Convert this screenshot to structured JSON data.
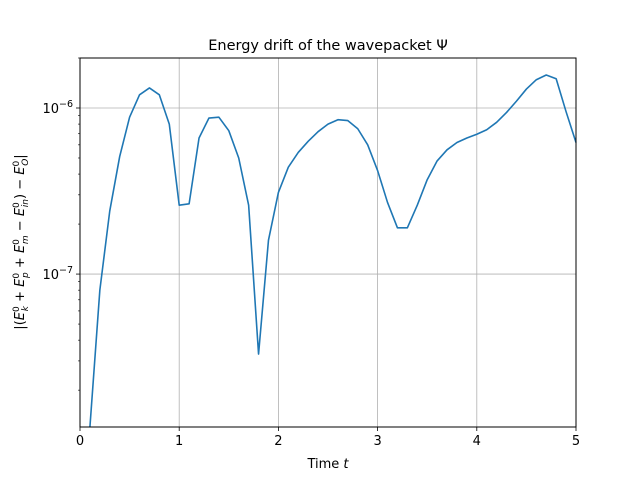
{
  "chart_data": {
    "type": "line",
    "title": "Energy drift of the wavepacket Ψ",
    "xlabel": "Time t",
    "ylabel": "|(E_k^0 + E_p^0 + E_m^0 − E_in^0) − E_O^0|",
    "xlim": [
      0,
      5
    ],
    "ylim": [
      1.2e-08,
      2e-06
    ],
    "yscale": "log",
    "grid": true,
    "x_ticks": [
      0,
      1,
      2,
      3,
      4,
      5
    ],
    "x_tick_labels": [
      "0",
      "1",
      "2",
      "3",
      "4",
      "5"
    ],
    "y_ticks": [
      1e-07,
      1e-06
    ],
    "y_tick_labels": [
      "10^-7",
      "10^-6"
    ],
    "series": [
      {
        "color": "#1f77b4",
        "x": [
          0.1,
          0.2,
          0.3,
          0.4,
          0.5,
          0.6,
          0.7,
          0.8,
          0.9,
          1.0,
          1.1,
          1.2,
          1.3,
          1.4,
          1.5,
          1.6,
          1.7,
          1.8,
          1.9,
          2.0,
          2.1,
          2.2,
          2.3,
          2.4,
          2.5,
          2.6,
          2.7,
          2.8,
          2.9,
          3.0,
          3.1,
          3.2,
          3.3,
          3.4,
          3.5,
          3.6,
          3.7,
          3.8,
          3.9,
          4.0,
          4.1,
          4.2,
          4.3,
          4.4,
          4.5,
          4.6,
          4.7,
          4.8,
          4.9,
          5.0
        ],
        "y": [
          1.2e-08,
          8e-08,
          2.4e-07,
          5.1e-07,
          8.8e-07,
          1.2e-06,
          1.32e-06,
          1.2e-06,
          8e-07,
          2.6e-07,
          2.65e-07,
          6.6e-07,
          8.7e-07,
          8.8e-07,
          7.3e-07,
          5e-07,
          2.6e-07,
          3.3e-08,
          1.6e-07,
          3.1e-07,
          4.4e-07,
          5.4e-07,
          6.3e-07,
          7.2e-07,
          8e-07,
          8.5e-07,
          8.4e-07,
          7.5e-07,
          6e-07,
          4.2e-07,
          2.7e-07,
          1.9e-07,
          1.9e-07,
          2.6e-07,
          3.7e-07,
          4.8e-07,
          5.6e-07,
          6.2e-07,
          6.6e-07,
          6.95e-07,
          7.4e-07,
          8.2e-07,
          9.4e-07,
          1.1e-06,
          1.3e-06,
          1.48e-06,
          1.58e-06,
          1.5e-06,
          9.5e-07,
          6.2e-07
        ]
      }
    ]
  }
}
